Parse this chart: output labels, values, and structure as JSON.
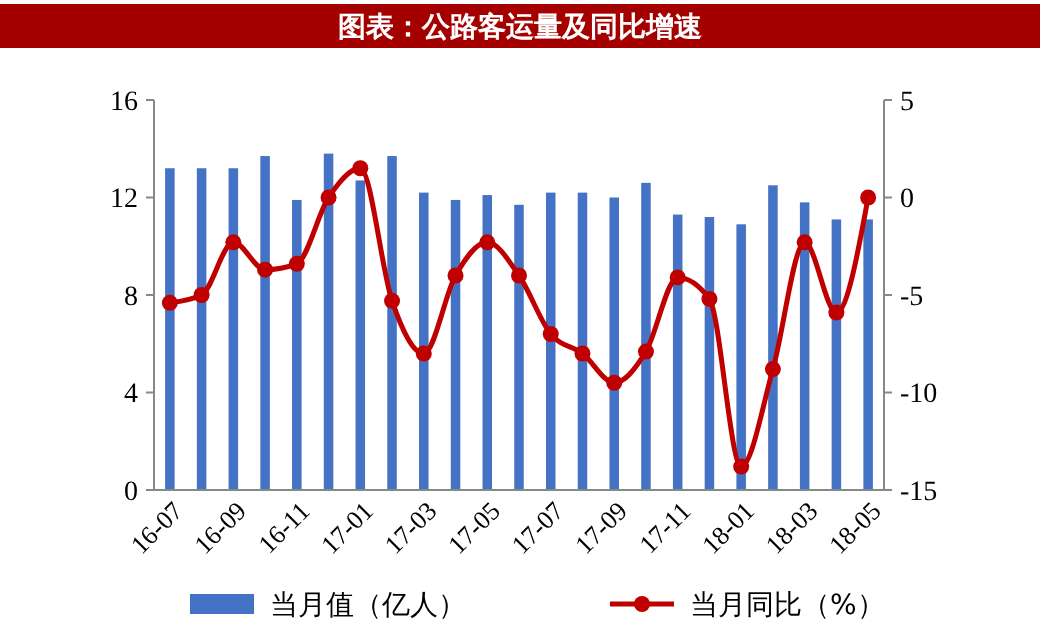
{
  "chart_data": {
    "type": "bar",
    "title": "图表：公路客运量及同比增速",
    "categories": [
      "16-07",
      null,
      "16-09",
      null,
      "16-11",
      null,
      "17-01",
      null,
      "17-03",
      null,
      "17-05",
      null,
      "17-07",
      null,
      "17-09",
      null,
      "17-11",
      null,
      "18-01",
      null,
      "18-03",
      null,
      "18-05"
    ],
    "series": [
      {
        "name": "当月值（亿人）",
        "color": "#4472c4",
        "values": [
          13.2,
          13.2,
          13.2,
          13.7,
          11.9,
          13.8,
          12.7,
          13.7,
          12.2,
          11.9,
          12.1,
          11.7,
          12.2,
          12.2,
          12.0,
          12.6,
          11.3,
          11.2,
          10.9,
          12.5,
          11.8,
          11.1,
          11.1
        ]
      },
      {
        "name": "当月同比（%）",
        "type": "line",
        "axis": "y2",
        "color": "#c00000",
        "marker": "circle",
        "values": [
          -5.4,
          -5.0,
          -2.3,
          -3.7,
          -3.4,
          0.0,
          1.5,
          -5.3,
          -8.0,
          -4.0,
          -2.3,
          -4.0,
          -7.0,
          -8.0,
          -9.5,
          -7.9,
          -4.1,
          -5.2,
          -13.8,
          -8.8,
          -2.3,
          -5.9,
          0.0
        ]
      }
    ],
    "ylim": [
      0,
      16
    ],
    "yticks": [
      0,
      4,
      8,
      12,
      16
    ],
    "y2lim": [
      -15,
      5
    ],
    "y2ticks": [
      -15,
      -10,
      -5,
      0,
      5
    ],
    "grid": false,
    "legend": "bottom"
  }
}
